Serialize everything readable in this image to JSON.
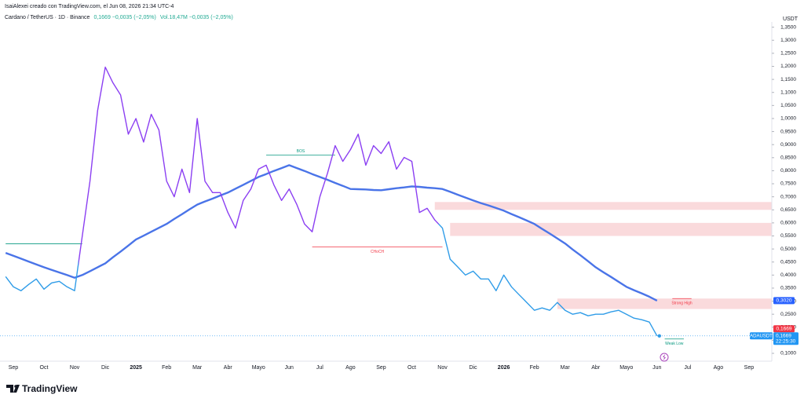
{
  "chart_data": {
    "type": "line",
    "title": "IsaiAlexei creado con TradingView.com, el Jun 08, 2026 21:34 UTC-4",
    "symbol": "Cardano / TetherUS · 1D · Binance",
    "quote": "0,1669 −0,0035 (−2,05%)",
    "volume": "Vol.18,47M −0,0035 (−2,05%)",
    "unit": "USDT",
    "categories": [
      null,
      "Sep",
      null,
      null,
      null,
      "Oct",
      null,
      null,
      null,
      "Nov",
      null,
      null,
      null,
      "Dic",
      null,
      null,
      null,
      "2025",
      null,
      null,
      null,
      "Feb",
      null,
      null,
      null,
      "Mar",
      null,
      null,
      null,
      "Abr",
      null,
      null,
      null,
      "Mayo",
      null,
      null,
      null,
      "Jun",
      null,
      null,
      null,
      "Jul",
      null,
      null,
      null,
      "Ago",
      null,
      null,
      null,
      "Sep",
      null,
      null,
      null,
      "Oct",
      null,
      null,
      null,
      "Nov",
      null,
      null,
      null,
      "Dic",
      null,
      null,
      null,
      "2026",
      null,
      null,
      null,
      "Feb",
      null,
      null,
      null,
      "Mar",
      null,
      null,
      null,
      "Abr",
      null,
      null,
      null,
      "Mayo",
      null,
      null,
      null,
      "Jun",
      null,
      null,
      null,
      "Jul",
      null,
      null,
      null,
      "Ago",
      null,
      null,
      null,
      "Sep",
      null,
      null,
      null
    ],
    "series": [
      {
        "color": "#2f9ce8",
        "highlight_color": "#8b3ff2",
        "values": [
          0.394,
          0.355,
          0.34,
          0.364,
          0.385,
          0.346,
          0.37,
          0.376,
          0.355,
          0.34,
          0.55,
          0.76,
          1.03,
          1.197,
          1.137,
          1.09,
          0.94,
          1.0,
          0.91,
          1.016,
          0.956,
          0.76,
          0.7,
          0.806,
          0.716,
          1.0,
          0.76,
          0.716,
          0.716,
          0.64,
          0.58,
          0.686,
          0.73,
          0.806,
          0.821,
          0.746,
          0.686,
          0.73,
          0.67,
          0.596,
          0.566,
          0.7,
          0.79,
          0.896,
          0.836,
          0.881,
          0.94,
          0.821,
          0.896,
          0.866,
          0.911,
          0.806,
          0.851,
          0.836,
          0.64,
          0.656,
          0.611,
          0.58,
          0.461,
          0.431,
          0.4,
          0.415,
          0.385,
          0.385,
          0.34,
          0.4,
          0.355,
          0.325,
          0.295,
          0.265,
          0.274,
          0.265,
          0.295,
          0.265,
          0.25,
          0.256,
          0.244,
          0.25,
          0.25,
          0.259,
          0.265,
          0.25,
          0.235,
          0.229,
          0.22,
          0.1669,
          null,
          null,
          null,
          null,
          null,
          null,
          null,
          null,
          null,
          null,
          null,
          null,
          null,
          null,
          null
        ]
      },
      {
        "color": "#4a74e8",
        "values": [
          0.485,
          0.474,
          0.463,
          0.452,
          0.441,
          0.43,
          0.42,
          0.41,
          0.4,
          0.39,
          0.4,
          0.415,
          0.43,
          0.445,
          0.468,
          0.49,
          0.513,
          0.536,
          0.551,
          0.566,
          0.581,
          0.596,
          0.615,
          0.633,
          0.652,
          0.67,
          0.682,
          0.693,
          0.705,
          0.716,
          0.731,
          0.746,
          0.761,
          0.776,
          0.787,
          0.799,
          0.81,
          0.821,
          0.81,
          0.799,
          0.787,
          0.776,
          0.765,
          0.753,
          0.742,
          0.73,
          0.729,
          0.728,
          0.726,
          0.725,
          0.729,
          0.733,
          0.736,
          0.74,
          0.738,
          0.735,
          0.733,
          0.73,
          0.719,
          0.708,
          0.697,
          0.686,
          0.676,
          0.667,
          0.657,
          0.647,
          0.634,
          0.622,
          0.609,
          0.596,
          0.577,
          0.559,
          0.54,
          0.521,
          0.498,
          0.476,
          0.453,
          0.43,
          0.411,
          0.393,
          0.374,
          0.355,
          0.342,
          0.33,
          0.317,
          0.302,
          null,
          null,
          null,
          null,
          null,
          null,
          null,
          null,
          null,
          null,
          null,
          null,
          null,
          null,
          null
        ]
      }
    ],
    "ylim": [
      0.07,
      1.37
    ],
    "yticks": [
      {
        "value": 0.1,
        "label": "0,1000"
      },
      {
        "value": 0.15,
        "label": "0,1500"
      },
      {
        "value": 0.2,
        "label": "0,2000"
      },
      {
        "value": 0.25,
        "label": "0,2500"
      },
      {
        "value": 0.3,
        "label": "0,3000"
      },
      {
        "value": 0.35,
        "label": "0,3500"
      },
      {
        "value": 0.4,
        "label": "0,4000"
      },
      {
        "value": 0.45,
        "label": "0,4500"
      },
      {
        "value": 0.5,
        "label": "0,5000"
      },
      {
        "value": 0.55,
        "label": "0,5500"
      },
      {
        "value": 0.6,
        "label": "0,6000"
      },
      {
        "value": 0.65,
        "label": "0,6500"
      },
      {
        "value": 0.7,
        "label": "0,7000"
      },
      {
        "value": 0.75,
        "label": "0,7500"
      },
      {
        "value": 0.8,
        "label": "0,8000"
      },
      {
        "value": 0.85,
        "label": "0,8500"
      },
      {
        "value": 0.9,
        "label": "0,9000"
      },
      {
        "value": 0.95,
        "label": "0,9500"
      },
      {
        "value": 1.0,
        "label": "1,0000"
      },
      {
        "value": 1.05,
        "label": "1,0500"
      },
      {
        "value": 1.1,
        "label": "1,1000"
      },
      {
        "value": 1.15,
        "label": "1,1500"
      },
      {
        "value": 1.2,
        "label": "1,2000"
      },
      {
        "value": 1.25,
        "label": "1,2500"
      },
      {
        "value": 1.3,
        "label": "1,3000"
      },
      {
        "value": 1.35,
        "label": "1,3500"
      }
    ],
    "grid": false,
    "zones": [
      {
        "from": 0.65,
        "to": 0.68,
        "color": "#f9d3d6"
      },
      {
        "from": 0.55,
        "to": 0.6,
        "color": "#f9d3d6"
      },
      {
        "from": 0.27,
        "to": 0.31,
        "color": "#f9d3d6"
      }
    ],
    "levels": [
      {
        "value": 0.52,
        "color": "#089981"
      },
      {
        "value": 0.86,
        "text": "BOS",
        "color": "#089981"
      },
      {
        "value": 0.5078,
        "text": "CHoCH",
        "color": "#f23645"
      },
      {
        "value": 0.31,
        "text": "Strong High",
        "color": "#f23645"
      },
      {
        "value": 0.155,
        "text": "Weak Low",
        "color": "#089981"
      }
    ],
    "axis_labels": [
      {
        "value": 0.302,
        "label": "0,3020",
        "color": "#2962ff"
      },
      {
        "value": 0.1669,
        "label": "0,1669",
        "color": "#f23645"
      }
    ],
    "badge": {
      "name": "ADAUSDT",
      "value": 0.1669,
      "label": "0,1669",
      "time": "22:25:30",
      "color": "#2196f3"
    },
    "footer": "TradingView"
  }
}
